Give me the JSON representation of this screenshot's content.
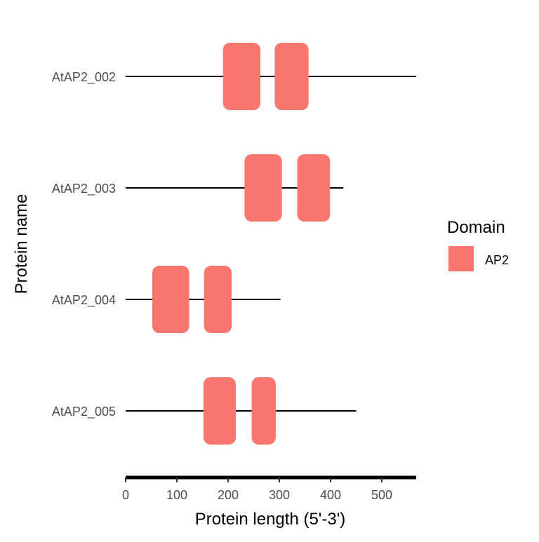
{
  "chart_data": {
    "type": "gene-structure",
    "xlabel": "Protein length (5'-3')",
    "ylabel": "Protein name",
    "xlim": [
      0,
      567
    ],
    "xticks": [
      0,
      100,
      200,
      300,
      400,
      500
    ],
    "grid": false,
    "legend": {
      "title": "Domain",
      "position": "right",
      "entries": [
        {
          "name": "AP2",
          "color": "#F8766D"
        }
      ]
    },
    "proteins": [
      {
        "name": "AtAP2_002",
        "length": 567,
        "domains": [
          {
            "type": "AP2",
            "start": 190,
            "end": 263
          },
          {
            "type": "AP2",
            "start": 291,
            "end": 357
          }
        ]
      },
      {
        "name": "AtAP2_003",
        "length": 425,
        "domains": [
          {
            "type": "AP2",
            "start": 232,
            "end": 305
          },
          {
            "type": "AP2",
            "start": 335,
            "end": 399
          }
        ]
      },
      {
        "name": "AtAP2_004",
        "length": 302,
        "domains": [
          {
            "type": "AP2",
            "start": 52,
            "end": 124
          },
          {
            "type": "AP2",
            "start": 153,
            "end": 207
          }
        ]
      },
      {
        "name": "AtAP2_005",
        "length": 450,
        "domains": [
          {
            "type": "AP2",
            "start": 152,
            "end": 215
          },
          {
            "type": "AP2",
            "start": 246,
            "end": 293
          }
        ]
      }
    ]
  }
}
